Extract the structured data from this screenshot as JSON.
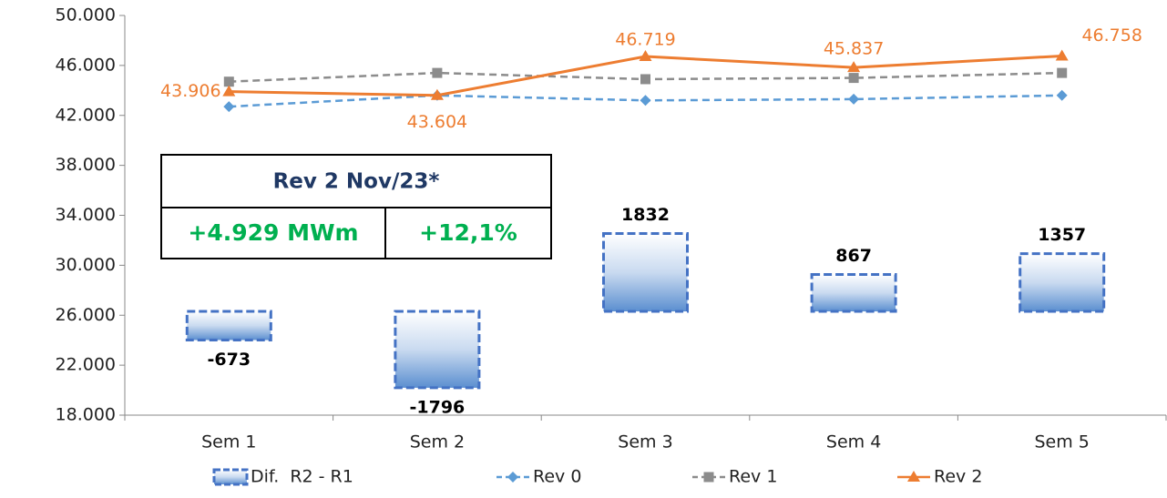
{
  "chart_data": {
    "type": "bar-line",
    "categories": [
      "Sem 1",
      "Sem 2",
      "Sem 3",
      "Sem 4",
      "Sem 5"
    ],
    "ylim": [
      18000,
      50000
    ],
    "yticks": [
      {
        "value": 18000,
        "label": "18.000"
      },
      {
        "value": 22000,
        "label": "22.000"
      },
      {
        "value": 26000,
        "label": "26.000"
      },
      {
        "value": 30000,
        "label": "30.000"
      },
      {
        "value": 34000,
        "label": "34.000"
      },
      {
        "value": 38000,
        "label": "38.000"
      },
      {
        "value": 42000,
        "label": "42.000"
      },
      {
        "value": 46000,
        "label": "46.000"
      },
      {
        "value": 50000,
        "label": "50.000"
      }
    ],
    "y2lim": [
      -2440,
      6960
    ],
    "series": [
      {
        "name": "Dif.  R2 - R1",
        "type": "bar",
        "axis": "y2",
        "color": "#4472c4",
        "values": [
          -673,
          -1796,
          1832,
          867,
          1357
        ]
      },
      {
        "name": "Rev 0",
        "type": "line",
        "color": "#5b9bd5",
        "dash": true,
        "marker": "diamond",
        "values": [
          42700,
          43600,
          43200,
          43300,
          43600
        ]
      },
      {
        "name": "Rev 1",
        "type": "line",
        "color": "#8c8c8c",
        "dash": true,
        "marker": "square",
        "values": [
          44700,
          45400,
          44900,
          45000,
          45400
        ]
      },
      {
        "name": "Rev 2",
        "type": "line",
        "color": "#ed7d31",
        "dash": false,
        "marker": "triangle",
        "values": [
          43906,
          43604,
          46719,
          45837,
          46758
        ],
        "value_labels": [
          "43.906",
          "43.604",
          "46.719",
          "45.837",
          "46.758"
        ]
      }
    ],
    "annotations": {
      "title": "Rev 2 Nov/23*",
      "delta": "+4.929 MWm",
      "percent": "+12,1%"
    }
  }
}
